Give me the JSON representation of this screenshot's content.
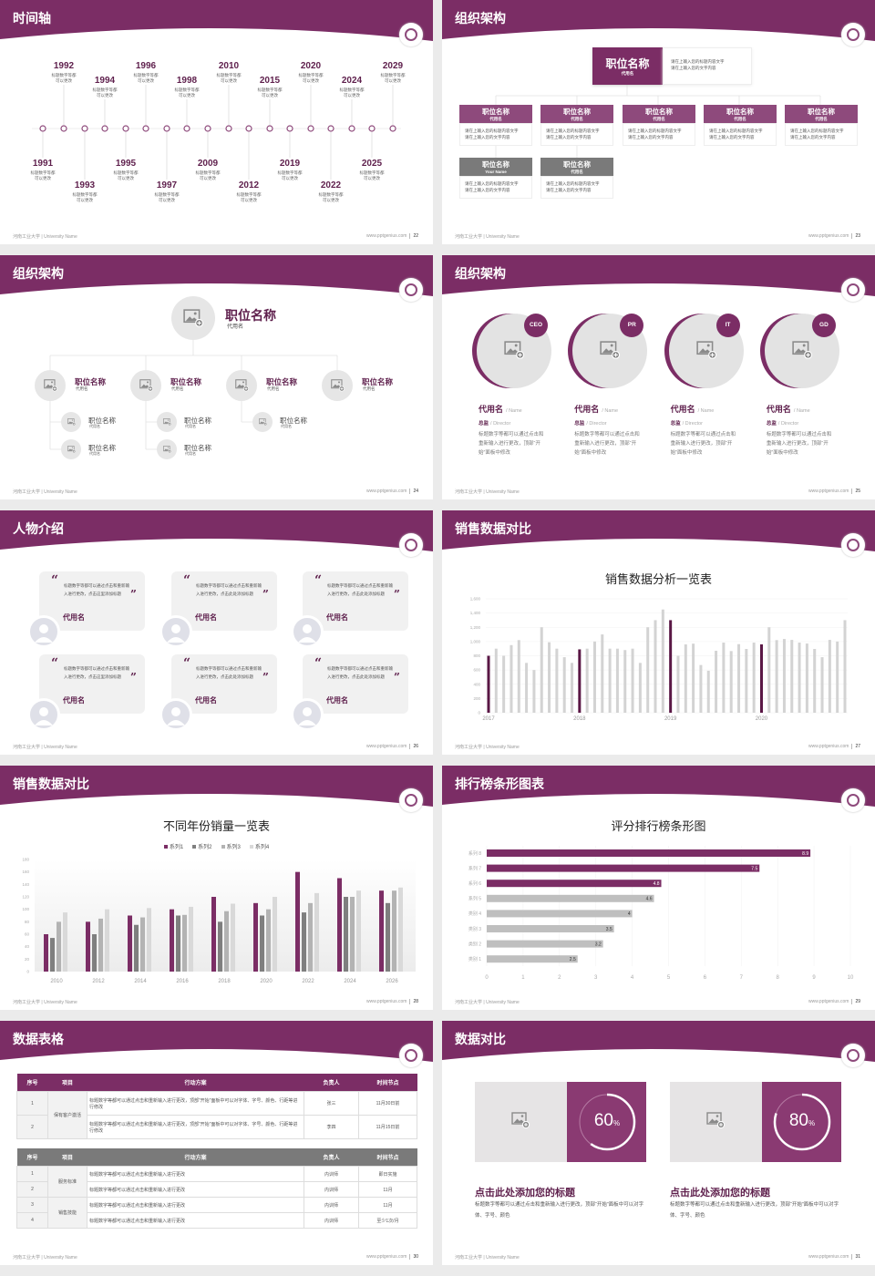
{
  "footer": {
    "university": "河南工业大学 | University Name",
    "website": "www.pptgenius.com"
  },
  "colors": {
    "brand_purple": "#7b2d65",
    "purple_light": "#8e4a7c",
    "gray_header": "#7a7a7a",
    "bar_gray": "#d0d0d0"
  },
  "slides": [
    {
      "title": "时间轴",
      "page": "22"
    },
    {
      "title": "组织架构",
      "page": "23"
    },
    {
      "title": "组织架构",
      "page": "24"
    },
    {
      "title": "组织架构",
      "page": "25"
    },
    {
      "title": "人物介绍",
      "page": "26"
    },
    {
      "title": "销售数据对比",
      "page": "27"
    },
    {
      "title": "销售数据对比",
      "page": "28"
    },
    {
      "title": "排行榜条形图表",
      "page": "29"
    },
    {
      "title": "数据表格",
      "page": "30"
    },
    {
      "title": "数据对比",
      "page": "31"
    }
  ],
  "timeline": {
    "items": [
      {
        "year": "1991",
        "desc": [
          "标题数字等都",
          "可以更改"
        ]
      },
      {
        "year": "1992",
        "desc": [
          "标题数字等都",
          "可以更改"
        ]
      },
      {
        "year": "1993",
        "desc": [
          "标题数字等都",
          "可以更改"
        ]
      },
      {
        "year": "1994",
        "desc": [
          "标题数字等都",
          "可以更改"
        ]
      },
      {
        "year": "1995",
        "desc": [
          "标题数字等都",
          "可以更改"
        ]
      },
      {
        "year": "1996",
        "desc": [
          "标题数字等都",
          "可以更改"
        ]
      },
      {
        "year": "1997",
        "desc": [
          "标题数字等都",
          "可以更改"
        ]
      },
      {
        "year": "1998",
        "desc": [
          "标题数字等都",
          "可以更改"
        ]
      },
      {
        "year": "2009",
        "desc": [
          "标题数字等都",
          "可以更改"
        ]
      },
      {
        "year": "2010",
        "desc": [
          "标题数字等都",
          "可以更改"
        ]
      },
      {
        "year": "2012",
        "desc": [
          "标题数字等都",
          "可以更改"
        ]
      },
      {
        "year": "2015",
        "desc": [
          "标题数字等都",
          "可以更改"
        ]
      },
      {
        "year": "2019",
        "desc": [
          "标题数字等都",
          "可以更改"
        ]
      },
      {
        "year": "2020",
        "desc": [
          "标题数字等都",
          "可以更改"
        ]
      },
      {
        "year": "2022",
        "desc": [
          "标题数字等都",
          "可以更改"
        ]
      },
      {
        "year": "2024",
        "desc": [
          "标题数字等都",
          "可以更改"
        ]
      },
      {
        "year": "2025",
        "desc": [
          "标题数字等都",
          "可以更改"
        ]
      },
      {
        "year": "2029",
        "desc": [
          "标题数字等都",
          "可以更改"
        ]
      }
    ]
  },
  "org_boxes": {
    "top": {
      "title": "职位名称",
      "sub": "代用名",
      "desc": [
        "请在上输入您的标题内容文字",
        "请在上输入您的文字内容"
      ]
    },
    "row1": [
      {
        "title": "职位名称",
        "sub": "代用名",
        "desc": [
          "请在上输入您的标题内容文字",
          "请在上输入您的文字内容"
        ]
      },
      {
        "title": "职位名称",
        "sub": "代用名",
        "desc": [
          "请在上输入您的标题内容文字",
          "请在上输入您的文字内容"
        ]
      },
      {
        "title": "职位名称",
        "sub": "代用名",
        "desc": [
          "请在上输入您的标题内容文字",
          "请在上输入您的文字内容"
        ]
      },
      {
        "title": "职位名称",
        "sub": "代用名",
        "desc": [
          "请在上输入您的标题内容文字",
          "请在上输入您的文字内容"
        ]
      },
      {
        "title": "职位名称",
        "sub": "代用名",
        "desc": [
          "请在上输入您的标题内容文字",
          "请在上输入您的文字内容"
        ]
      }
    ],
    "row2": [
      {
        "title": "职位名称",
        "sub": "Your Name",
        "desc": [
          "请在上输入您的标题内容文字",
          "请在上输入您的文字内容"
        ]
      },
      {
        "title": "职位名称",
        "sub": "代用名",
        "desc": [
          "请在上输入您的标题内容文字",
          "请在上输入您的文字内容"
        ]
      }
    ]
  },
  "org_tree": {
    "root": {
      "title": "职位名称",
      "sub": "代用名"
    },
    "branches": [
      {
        "title": "职位名称",
        "sub": "代用名",
        "children": [
          {
            "title": "职位名称",
            "sub": "代用名"
          },
          {
            "title": "职位名称",
            "sub": "代用名"
          }
        ]
      },
      {
        "title": "职位名称",
        "sub": "代用名",
        "children": [
          {
            "title": "职位名称",
            "sub": "代用名"
          },
          {
            "title": "职位名称",
            "sub": "代用名"
          }
        ]
      },
      {
        "title": "职位名称",
        "sub": "代用名",
        "children": [
          {
            "title": "职位名称",
            "sub": "代用名"
          }
        ]
      },
      {
        "title": "职位名称",
        "sub": "代用名",
        "children": []
      }
    ]
  },
  "team": [
    {
      "badge": "CEO",
      "name": "代用名",
      "name_en": "/ Name",
      "role": "总监",
      "role_en": "/  Director",
      "desc": "标题数字等都可以通过点击和重新输入进行更改，顶部“开始”面板中修改"
    },
    {
      "badge": "PR",
      "name": "代用名",
      "name_en": "/ Name",
      "role": "总监",
      "role_en": "/  Director",
      "desc": "标题数字等都可以通过点击和重新输入进行更改，顶部“开始”面板中修改"
    },
    {
      "badge": "IT",
      "name": "代用名",
      "name_en": "/ Name",
      "role": "总监",
      "role_en": "/  Director",
      "desc": "标题数字等都可以通过点击和重新输入进行更改，顶部“开始”面板中修改"
    },
    {
      "badge": "GD",
      "name": "代用名",
      "name_en": "/ Name",
      "role": "总监",
      "role_en": "/  Director",
      "desc": "标题数字等都可以通过点击和重新输入进行更改，顶部“开始”面板中修改"
    }
  ],
  "quotes": [
    {
      "text": "标题数字等都可以通过点击和重新输入进行更改，点击这里添加标题",
      "name": "代用名"
    },
    {
      "text": "标题数字等都可以通过点击和重新输入进行更改，点击此处添加标题",
      "name": "代用名"
    },
    {
      "text": "标题数字等都可以通过点击和重新输入进行更改，点击此处添加标题",
      "name": "代用名"
    },
    {
      "text": "标题数字等都可以通过点击和重新输入进行更改，点击这里添加标题",
      "name": "代用名"
    },
    {
      "text": "标题数字等都可以通过点击和重新输入进行更改，点击此处添加标题",
      "name": "代用名"
    },
    {
      "text": "标题数字等都可以通过点击和重新输入进行更改，点击此处添加标题",
      "name": "代用名"
    }
  ],
  "chart_data": [
    {
      "type": "bar",
      "title": "销售数据分析一览表",
      "ylim": [
        0,
        1600
      ],
      "y_ticks": [
        "0",
        "200",
        "400",
        "600",
        "800",
        "1,000",
        "1,200",
        "1,400",
        "1,600"
      ],
      "grid": true,
      "highlight_first_of_year": true,
      "years": [
        {
          "label": "2017",
          "values": [
            800,
            900,
            800,
            950,
            1020,
            700,
            600,
            1200,
            990,
            900,
            780,
            700
          ]
        },
        {
          "label": "2018",
          "values": [
            890,
            900,
            1000,
            1100,
            900,
            900,
            880,
            900,
            700,
            1200,
            1300,
            1450
          ]
        },
        {
          "label": "2019",
          "values": [
            1300,
            800,
            960,
            970,
            670,
            590,
            870,
            985,
            866,
            963,
            896,
            985
          ]
        },
        {
          "label": "2020",
          "values": [
            960,
            1200,
            1020,
            1036,
            1023,
            985,
            972,
            896,
            780,
            1023,
            1000,
            1300
          ]
        }
      ]
    },
    {
      "type": "bar",
      "title": "不同年份销量一览表",
      "categories": [
        "2010",
        "2012",
        "2014",
        "2016",
        "2018",
        "2020",
        "2022",
        "2024",
        "2026"
      ],
      "ylim": [
        0,
        180
      ],
      "y_ticks": [
        "0",
        "20",
        "40",
        "60",
        "80",
        "100",
        "120",
        "140",
        "160",
        "180"
      ],
      "legend": "top",
      "series": [
        {
          "name": "系列1",
          "color": "#7b2d65",
          "values": [
            60,
            80,
            90,
            100,
            120,
            110,
            160,
            150,
            130
          ]
        },
        {
          "name": "系列2",
          "color": "#7f7f7f",
          "values": [
            54,
            60,
            75,
            90,
            80,
            90,
            95,
            120,
            110
          ]
        },
        {
          "name": "系列3",
          "color": "#b3b3b3",
          "values": [
            80,
            85,
            87,
            91,
            97,
            100,
            110,
            120,
            130
          ]
        },
        {
          "name": "系列4",
          "color": "#d9d9d9",
          "values": [
            95,
            100,
            102,
            104,
            109,
            120,
            126,
            130,
            135
          ]
        }
      ]
    },
    {
      "type": "bar",
      "orientation": "horizontal",
      "title": "评分排行榜条形图",
      "categories": [
        "类别 1",
        "类别 2",
        "类别 3",
        "类别 4",
        "系列 5",
        "系列 6",
        "系列 7",
        "系列 8"
      ],
      "values": [
        2.5,
        3.2,
        3.5,
        4,
        4.6,
        4.8,
        7.5,
        8.9
      ],
      "value_labels": [
        "2.5",
        "3.2",
        "3.5",
        "4",
        "4.6",
        "4.8",
        "7.5",
        "8.9"
      ],
      "bar_colors": [
        "#bfbfbf",
        "#bfbfbf",
        "#bfbfbf",
        "#bfbfbf",
        "#bfbfbf",
        "#7b2d65",
        "#7b2d65",
        "#7b2d65"
      ],
      "xlim": [
        0,
        10
      ],
      "x_ticks": [
        "0",
        "1",
        "2",
        "3",
        "4",
        "5",
        "6",
        "7",
        "8",
        "9",
        "10"
      ],
      "grid": true
    }
  ],
  "tables": {
    "headers": [
      "序号",
      "项目",
      "行动方案",
      "负责人",
      "时间节点"
    ],
    "table1": {
      "group": "保有客户激活",
      "rows": [
        {
          "no": "1",
          "plan": "标题数字等都可以通过点击和重新输入进行更改，顶部“开始”面板中可以对字体、字号、颜色、行距等进行修改",
          "owner": "张三",
          "time": "11月30日前"
        },
        {
          "no": "2",
          "plan": "标题数字等都可以通过点击和重新输入进行更改，顶部“开始”面板中可以对字体、字号、颜色、行距等进行修改",
          "owner": "李四",
          "time": "11月15日前"
        }
      ]
    },
    "table2": {
      "groups": [
        "服务标准",
        "销售技能"
      ],
      "rows": [
        {
          "no": "1",
          "plan": "标题数字等都可以通过点击和重新输入进行更改",
          "owner": "内训师",
          "time": "即日实施"
        },
        {
          "no": "2",
          "plan": "标题数字等都可以通过点击和重新输入进行更改",
          "owner": "内训师",
          "time": "11月"
        },
        {
          "no": "3",
          "plan": "标题数字等都可以通过点击和重新输入进行更改",
          "owner": "内训师",
          "time": "11月"
        },
        {
          "no": "4",
          "plan": "标题数字等都可以通过点击和重新输入进行更改",
          "owner": "内训师",
          "time": "至少1次/月"
        }
      ]
    }
  },
  "compare": [
    {
      "percent": 60,
      "value": "60",
      "unit": "%",
      "title": "点击此处添加您的标题",
      "desc": "标题数字等都可以通过点击和重新输入进行更改，顶部“开始”面板中可以对字体、字号、颜色"
    },
    {
      "percent": 80,
      "value": "80",
      "unit": "%",
      "title": "点击此处添加您的标题",
      "desc": "标题数字等都可以通过点击和重新输入进行更改，顶部“开始”面板中可以对字体、字号、颜色"
    }
  ]
}
